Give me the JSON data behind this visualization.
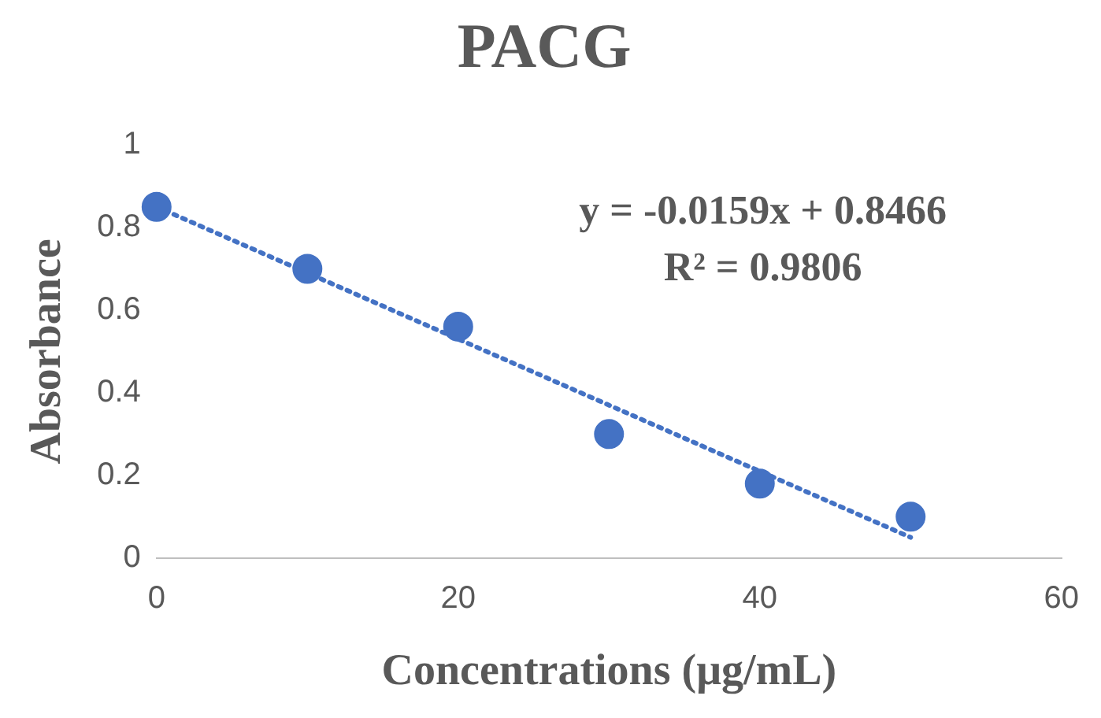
{
  "chart_data": {
    "type": "scatter",
    "title": "PACG",
    "xlabel": "Concentrations (μg/mL)",
    "ylabel": "Absorbance",
    "annotations": [
      "y = -0.0159x + 0.8466",
      "R² = 0.9806"
    ],
    "xlim": [
      0,
      60
    ],
    "xticks": [
      0,
      20,
      40,
      60
    ],
    "ylim": [
      0,
      1
    ],
    "yticks": [
      0,
      0.2,
      0.4,
      0.6,
      0.8,
      1
    ],
    "grid": false,
    "legend": false,
    "marker": "circle",
    "series": [
      {
        "type": "scatter",
        "color": "#4472c4",
        "x": [
          0,
          10,
          20,
          30,
          40,
          50
        ],
        "values": [
          0.85,
          0.7,
          0.56,
          0.3,
          0.18,
          0.1
        ]
      },
      {
        "type": "line",
        "color": "#4472c4",
        "line_style": "dotted",
        "marker": "none",
        "x": [
          0,
          50
        ],
        "values": [
          0.85,
          0.05
        ]
      }
    ]
  }
}
